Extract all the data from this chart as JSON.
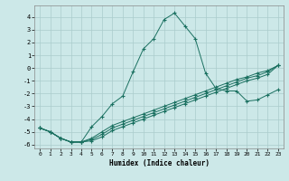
{
  "xlabel": "Humidex (Indice chaleur)",
  "bg_color": "#cce8e8",
  "grid_color": "#aacccc",
  "line_color": "#1a7060",
  "xlim": [
    -0.5,
    23.5
  ],
  "ylim": [
    -6.3,
    4.9
  ],
  "xticks": [
    0,
    1,
    2,
    3,
    4,
    5,
    6,
    7,
    8,
    9,
    10,
    11,
    12,
    13,
    14,
    15,
    16,
    17,
    18,
    19,
    20,
    21,
    22,
    23
  ],
  "yticks": [
    -6,
    -5,
    -4,
    -3,
    -2,
    -1,
    0,
    1,
    2,
    3,
    4
  ],
  "curve1_x": [
    0,
    1,
    2,
    3,
    4,
    5,
    6,
    7,
    8,
    9,
    10,
    11,
    12,
    13,
    14,
    15,
    16,
    17,
    18,
    19,
    20,
    21,
    22,
    23
  ],
  "curve1_y": [
    -4.7,
    -5.0,
    -5.5,
    -5.8,
    -5.8,
    -4.6,
    -3.8,
    -2.8,
    -2.2,
    -0.3,
    1.5,
    2.3,
    3.8,
    4.3,
    3.3,
    2.3,
    -0.4,
    -1.6,
    -1.8,
    -1.8,
    -2.6,
    -2.5,
    -2.1,
    -1.7
  ],
  "curve2_x": [
    0,
    1,
    2,
    3,
    4,
    5,
    6,
    7,
    8,
    9,
    10,
    11,
    12,
    13,
    14,
    15,
    16,
    17,
    18,
    19,
    20,
    21,
    22,
    23
  ],
  "curve2_y": [
    -4.7,
    -5.0,
    -5.5,
    -5.8,
    -5.8,
    -5.5,
    -5.0,
    -4.5,
    -4.2,
    -3.9,
    -3.6,
    -3.3,
    -3.0,
    -2.7,
    -2.4,
    -2.1,
    -1.8,
    -1.5,
    -1.2,
    -0.9,
    -0.7,
    -0.4,
    -0.2,
    0.2
  ],
  "curve3_x": [
    0,
    1,
    2,
    3,
    4,
    5,
    6,
    7,
    8,
    9,
    10,
    11,
    12,
    13,
    14,
    15,
    16,
    17,
    18,
    19,
    20,
    21,
    22,
    23
  ],
  "curve3_y": [
    -4.7,
    -5.0,
    -5.5,
    -5.8,
    -5.8,
    -5.6,
    -5.2,
    -4.7,
    -4.4,
    -4.1,
    -3.8,
    -3.5,
    -3.2,
    -2.9,
    -2.6,
    -2.3,
    -2.0,
    -1.7,
    -1.4,
    -1.1,
    -0.8,
    -0.6,
    -0.3,
    0.2
  ],
  "curve4_x": [
    0,
    1,
    2,
    3,
    4,
    5,
    6,
    7,
    8,
    9,
    10,
    11,
    12,
    13,
    14,
    15,
    16,
    17,
    18,
    19,
    20,
    21,
    22,
    23
  ],
  "curve4_y": [
    -4.7,
    -5.0,
    -5.5,
    -5.8,
    -5.8,
    -5.7,
    -5.4,
    -4.9,
    -4.6,
    -4.3,
    -4.0,
    -3.7,
    -3.4,
    -3.1,
    -2.8,
    -2.5,
    -2.2,
    -1.9,
    -1.6,
    -1.3,
    -1.0,
    -0.8,
    -0.5,
    0.2
  ]
}
